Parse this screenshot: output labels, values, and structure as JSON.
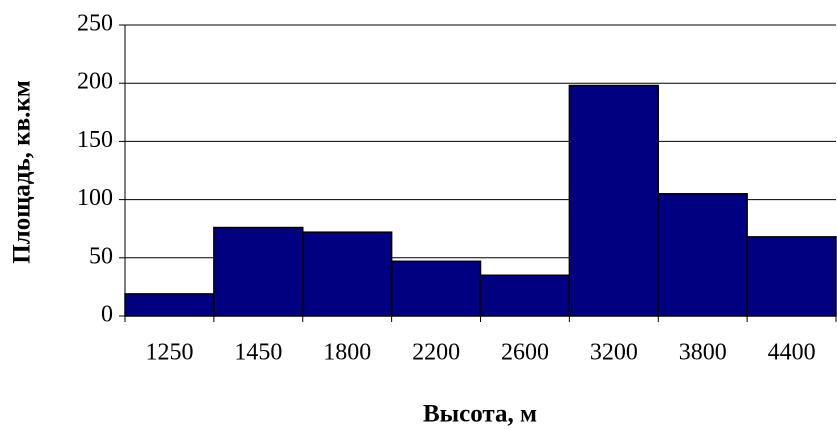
{
  "chart_data": {
    "type": "bar",
    "categories": [
      "1250",
      "1450",
      "1800",
      "2200",
      "2600",
      "3200",
      "3800",
      "4400"
    ],
    "values": [
      19,
      76,
      72,
      47,
      35,
      198,
      105,
      68
    ],
    "color": "#000080",
    "xlabel": "Высота, м",
    "ylabel": "Площадь,  кв.км",
    "ylim": [
      0,
      250
    ],
    "yticks": [
      0,
      50,
      100,
      150,
      200,
      250
    ],
    "grid": true
  }
}
